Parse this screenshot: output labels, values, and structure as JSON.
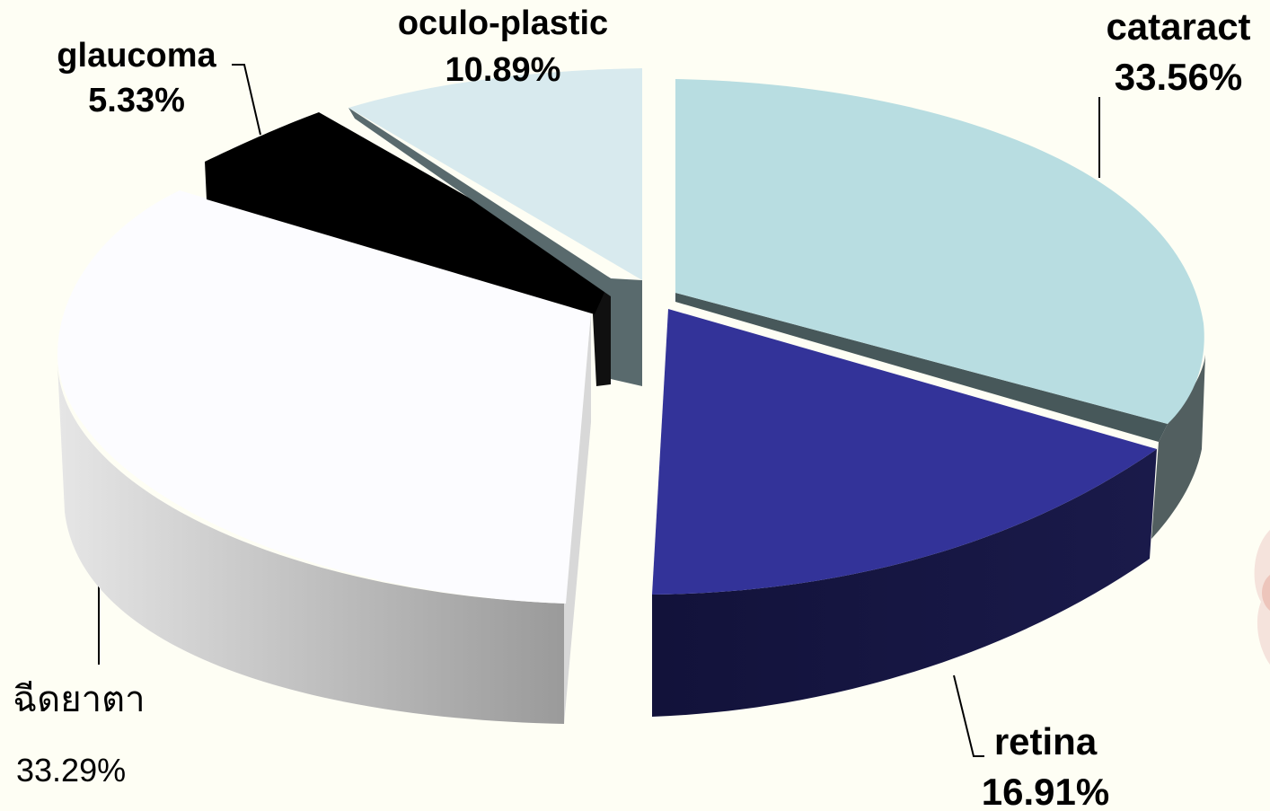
{
  "chart_data": {
    "type": "pie",
    "title": "",
    "slices": [
      {
        "label": "cataract",
        "value": 33.56,
        "value_label": "33.56%",
        "color": "#b8dde1",
        "side_color": "#47585a"
      },
      {
        "label": "retina",
        "value": 16.91,
        "value_label": "16.91%",
        "color": "#333399",
        "side_color": "#151540"
      },
      {
        "label": "ฉีดยาตา",
        "value": 33.29,
        "value_label": "33.29%",
        "color": "#fcfcff",
        "side_color": "#c4c4c4"
      },
      {
        "label": "glaucoma",
        "value": 5.33,
        "value_label": "5.33%",
        "color": "#000000",
        "side_color": "#000000"
      },
      {
        "label": "oculo-plastic",
        "value": 10.89,
        "value_label": "10.89%",
        "color": "#d8eaee",
        "side_color": "#596a6d"
      }
    ],
    "legend": "none",
    "data_labels": "outside",
    "style": "3d-exploded"
  }
}
